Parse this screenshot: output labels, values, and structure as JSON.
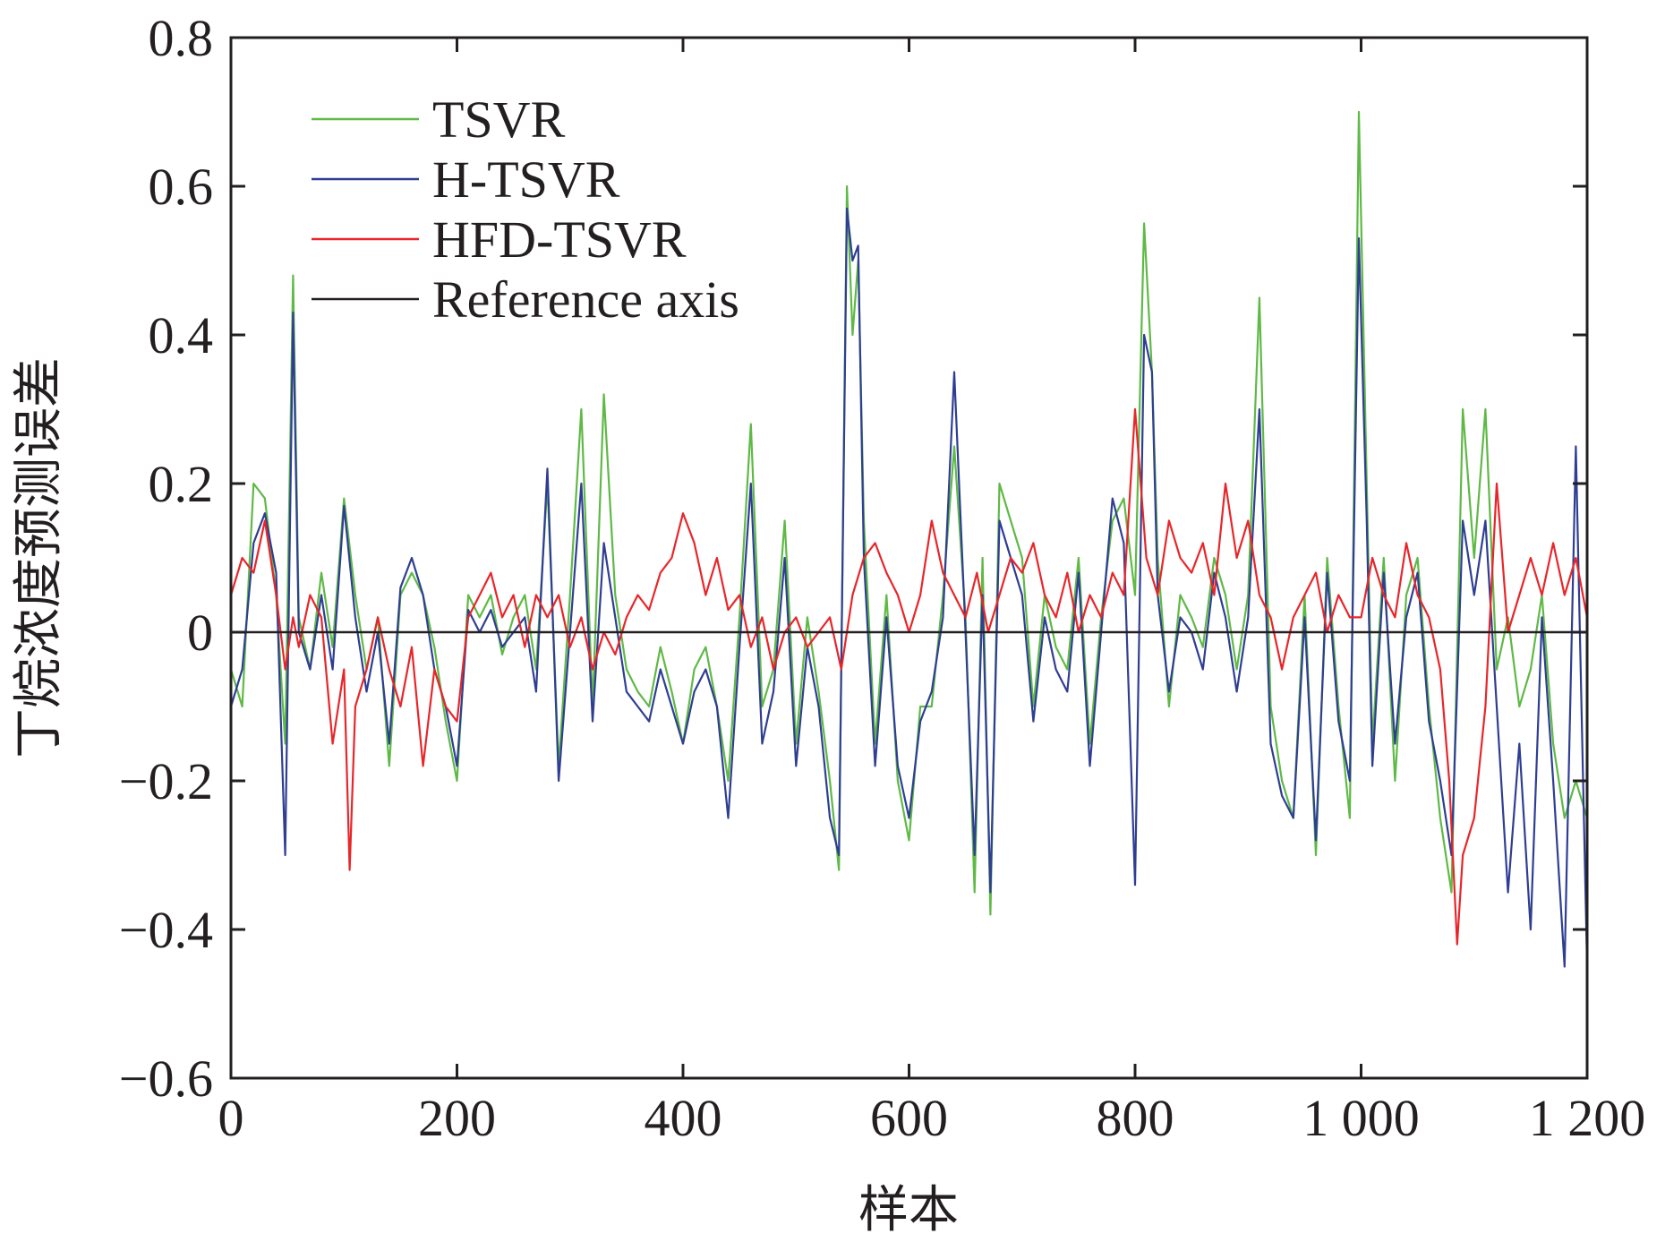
{
  "chart_data": {
    "type": "line",
    "xlabel": "样本",
    "ylabel": "丁烷浓度预测误差",
    "xlim": [
      0,
      1200
    ],
    "ylim": [
      -0.6,
      0.8
    ],
    "xticks": [
      0,
      200,
      400,
      600,
      800,
      1000,
      1200
    ],
    "xtick_labels": [
      "0",
      "200",
      "400",
      "600",
      "800",
      "1 000",
      "1 200"
    ],
    "yticks": [
      -0.6,
      -0.4,
      -0.2,
      0,
      0.2,
      0.4,
      0.6,
      0.8
    ],
    "ytick_labels": [
      "−0.6",
      "−0.4",
      "−0.2",
      "0",
      "0.2",
      "0.4",
      "0.6",
      "0.8"
    ],
    "grid": false,
    "legend_position": "top-left",
    "series": [
      {
        "name": "TSVR",
        "color": "#5fb946",
        "x": [
          0,
          10,
          20,
          30,
          40,
          48,
          55,
          60,
          70,
          80,
          90,
          100,
          110,
          120,
          130,
          140,
          150,
          160,
          170,
          180,
          190,
          200,
          210,
          220,
          230,
          240,
          250,
          260,
          270,
          280,
          290,
          300,
          310,
          320,
          330,
          340,
          350,
          360,
          370,
          380,
          390,
          400,
          410,
          420,
          430,
          440,
          450,
          460,
          470,
          480,
          490,
          500,
          510,
          520,
          530,
          538,
          545,
          550,
          555,
          560,
          570,
          580,
          590,
          600,
          610,
          620,
          630,
          640,
          650,
          658,
          665,
          672,
          680,
          690,
          700,
          710,
          720,
          730,
          740,
          750,
          760,
          770,
          780,
          790,
          800,
          808,
          815,
          820,
          830,
          840,
          850,
          860,
          870,
          880,
          890,
          900,
          910,
          920,
          930,
          940,
          950,
          960,
          970,
          980,
          990,
          998,
          1005,
          1010,
          1020,
          1030,
          1040,
          1050,
          1060,
          1070,
          1080,
          1090,
          1100,
          1110,
          1120,
          1130,
          1140,
          1150,
          1160,
          1170,
          1180,
          1190,
          1200
        ],
        "values": [
          -0.05,
          -0.1,
          0.2,
          0.18,
          0.05,
          -0.15,
          0.48,
          0.02,
          -0.05,
          0.08,
          -0.02,
          0.18,
          0.05,
          -0.05,
          0.02,
          -0.18,
          0.05,
          0.08,
          0.05,
          -0.02,
          -0.12,
          -0.2,
          0.05,
          0.02,
          0.05,
          -0.03,
          0.02,
          0.05,
          -0.05,
          0.2,
          -0.18,
          0.05,
          0.3,
          -0.1,
          0.32,
          0.05,
          -0.05,
          -0.08,
          -0.1,
          -0.02,
          -0.08,
          -0.15,
          -0.05,
          -0.02,
          -0.1,
          -0.2,
          0.02,
          0.28,
          -0.1,
          -0.05,
          0.15,
          -0.15,
          0.02,
          -0.08,
          -0.2,
          -0.32,
          0.6,
          0.4,
          0.5,
          0.15,
          -0.15,
          0.05,
          -0.2,
          -0.28,
          -0.1,
          -0.1,
          0.05,
          0.25,
          0.02,
          -0.35,
          0.1,
          -0.38,
          0.2,
          0.15,
          0.1,
          -0.1,
          0.05,
          -0.02,
          -0.05,
          0.1,
          -0.15,
          0.02,
          0.15,
          0.18,
          0.05,
          0.55,
          0.35,
          0.1,
          -0.1,
          0.05,
          0.02,
          -0.02,
          0.1,
          0.05,
          -0.05,
          0.05,
          0.45,
          -0.1,
          -0.2,
          -0.25,
          0.05,
          -0.3,
          0.1,
          -0.1,
          -0.25,
          0.7,
          0.2,
          -0.15,
          0.1,
          -0.2,
          0.05,
          0.1,
          -0.1,
          -0.25,
          -0.35,
          0.3,
          0.1,
          0.3,
          -0.05,
          0.02,
          -0.1,
          -0.05,
          0.05,
          -0.15,
          -0.25,
          -0.2,
          -0.25
        ]
      },
      {
        "name": "H-TSVR",
        "color": "#2f3e93",
        "x": [
          0,
          10,
          20,
          30,
          40,
          48,
          55,
          60,
          70,
          80,
          90,
          100,
          110,
          120,
          130,
          140,
          150,
          160,
          170,
          180,
          190,
          200,
          210,
          220,
          230,
          240,
          250,
          260,
          270,
          280,
          290,
          300,
          310,
          320,
          330,
          340,
          350,
          360,
          370,
          380,
          390,
          400,
          410,
          420,
          430,
          440,
          450,
          460,
          470,
          480,
          490,
          500,
          510,
          520,
          530,
          538,
          545,
          550,
          555,
          560,
          570,
          580,
          590,
          600,
          610,
          620,
          630,
          640,
          650,
          658,
          665,
          672,
          680,
          690,
          700,
          710,
          720,
          730,
          740,
          750,
          760,
          770,
          780,
          790,
          800,
          808,
          815,
          820,
          830,
          840,
          850,
          860,
          870,
          880,
          890,
          900,
          910,
          920,
          930,
          940,
          950,
          960,
          970,
          980,
          990,
          998,
          1005,
          1010,
          1020,
          1030,
          1040,
          1050,
          1060,
          1070,
          1080,
          1090,
          1100,
          1110,
          1120,
          1130,
          1140,
          1150,
          1160,
          1170,
          1180,
          1190,
          1200
        ],
        "values": [
          -0.1,
          -0.05,
          0.12,
          0.16,
          0.08,
          -0.3,
          0.43,
          0.0,
          -0.05,
          0.05,
          -0.05,
          0.17,
          0.02,
          -0.08,
          0.0,
          -0.15,
          0.06,
          0.1,
          0.05,
          -0.05,
          -0.1,
          -0.18,
          0.03,
          0.0,
          0.03,
          -0.02,
          0.0,
          0.02,
          -0.08,
          0.22,
          -0.2,
          0.0,
          0.2,
          -0.12,
          0.12,
          0.02,
          -0.08,
          -0.1,
          -0.12,
          -0.05,
          -0.1,
          -0.15,
          -0.08,
          -0.05,
          -0.1,
          -0.25,
          -0.02,
          0.2,
          -0.15,
          -0.08,
          0.1,
          -0.18,
          -0.02,
          -0.1,
          -0.25,
          -0.3,
          0.57,
          0.5,
          0.52,
          0.1,
          -0.18,
          0.02,
          -0.18,
          -0.25,
          -0.12,
          -0.08,
          0.02,
          0.35,
          0.0,
          -0.3,
          0.05,
          -0.35,
          0.15,
          0.1,
          0.05,
          -0.12,
          0.02,
          -0.05,
          -0.08,
          0.08,
          -0.18,
          0.0,
          0.18,
          0.12,
          -0.34,
          0.4,
          0.35,
          0.05,
          -0.08,
          0.02,
          0.0,
          -0.05,
          0.08,
          0.02,
          -0.08,
          0.02,
          0.3,
          -0.15,
          -0.22,
          -0.25,
          0.02,
          -0.28,
          0.08,
          -0.12,
          -0.2,
          0.53,
          0.15,
          -0.18,
          0.08,
          -0.15,
          0.02,
          0.08,
          -0.12,
          -0.2,
          -0.3,
          0.15,
          0.05,
          0.15,
          -0.1,
          -0.35,
          -0.15,
          -0.4,
          0.02,
          -0.2,
          -0.45,
          0.25,
          -0.45
        ]
      },
      {
        "name": "HFD-TSVR",
        "color": "#e8262a",
        "x": [
          0,
          10,
          20,
          30,
          40,
          48,
          55,
          60,
          70,
          80,
          90,
          100,
          105,
          110,
          120,
          130,
          140,
          150,
          160,
          170,
          180,
          190,
          200,
          210,
          220,
          230,
          240,
          250,
          260,
          270,
          280,
          290,
          300,
          310,
          320,
          330,
          340,
          350,
          360,
          370,
          380,
          390,
          400,
          410,
          420,
          430,
          440,
          450,
          460,
          470,
          480,
          490,
          500,
          510,
          520,
          530,
          540,
          550,
          560,
          570,
          580,
          590,
          600,
          610,
          620,
          630,
          640,
          650,
          660,
          670,
          680,
          690,
          700,
          710,
          720,
          730,
          740,
          750,
          760,
          770,
          780,
          790,
          800,
          810,
          820,
          830,
          840,
          850,
          860,
          870,
          880,
          890,
          900,
          910,
          920,
          930,
          940,
          950,
          960,
          970,
          980,
          990,
          1000,
          1010,
          1020,
          1030,
          1040,
          1050,
          1060,
          1070,
          1078,
          1085,
          1090,
          1100,
          1110,
          1120,
          1130,
          1140,
          1150,
          1160,
          1170,
          1180,
          1190,
          1200
        ],
        "values": [
          0.05,
          0.1,
          0.08,
          0.15,
          0.05,
          -0.05,
          0.02,
          -0.02,
          0.05,
          0.02,
          -0.15,
          -0.05,
          -0.32,
          -0.1,
          -0.05,
          0.02,
          -0.05,
          -0.1,
          -0.02,
          -0.18,
          -0.05,
          -0.1,
          -0.12,
          0.02,
          0.05,
          0.08,
          0.02,
          0.05,
          -0.02,
          0.05,
          0.02,
          0.05,
          -0.02,
          0.02,
          -0.05,
          0.0,
          -0.03,
          0.02,
          0.05,
          0.03,
          0.08,
          0.1,
          0.16,
          0.12,
          0.05,
          0.1,
          0.03,
          0.05,
          -0.02,
          0.02,
          -0.05,
          0.0,
          0.02,
          -0.02,
          0.0,
          0.02,
          -0.05,
          0.05,
          0.1,
          0.12,
          0.08,
          0.05,
          0.0,
          0.05,
          0.15,
          0.08,
          0.05,
          0.02,
          0.08,
          0.0,
          0.05,
          0.1,
          0.08,
          0.12,
          0.05,
          0.02,
          0.08,
          0.0,
          0.05,
          0.02,
          0.08,
          0.05,
          0.3,
          0.1,
          0.05,
          0.15,
          0.1,
          0.08,
          0.12,
          0.05,
          0.2,
          0.1,
          0.15,
          0.05,
          0.02,
          -0.05,
          0.02,
          0.05,
          0.08,
          0.0,
          0.05,
          0.02,
          0.02,
          0.1,
          0.05,
          0.02,
          0.12,
          0.05,
          0.02,
          -0.05,
          -0.2,
          -0.42,
          -0.3,
          -0.25,
          -0.1,
          0.2,
          0.0,
          0.05,
          0.1,
          0.05,
          0.12,
          0.05,
          0.1,
          0.02
        ]
      }
    ],
    "reference_axis": {
      "name": "Reference axis",
      "color": "#231f20",
      "y": 0
    },
    "legend": [
      "TSVR",
      "H-TSVR",
      "HFD-TSVR",
      "Reference axis"
    ]
  }
}
